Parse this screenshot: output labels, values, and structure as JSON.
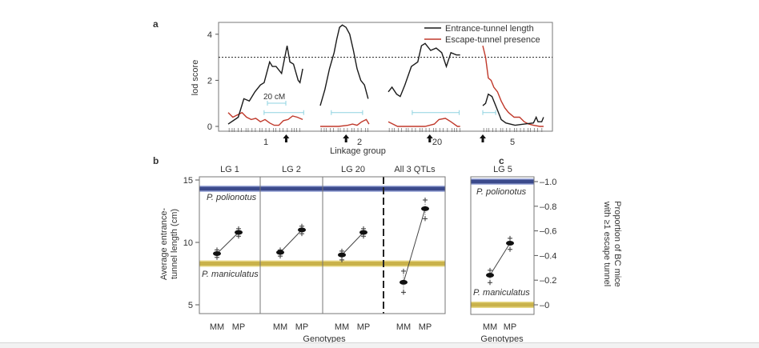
{
  "colors": {
    "black_series": "#1a1a1a",
    "red_series": "#c0392b",
    "interval": "#8fd3e0",
    "polionotus_band": "#3b4a8c",
    "maniculatus_band": "#c9b24a"
  },
  "chart_data": [
    {
      "panel": "a",
      "type": "line",
      "ylabel": "lod score",
      "xlabel": "Linkage group",
      "ylim": [
        -0.2,
        4.6
      ],
      "yticks": [
        0,
        2,
        4
      ],
      "threshold": 3,
      "scale_bar_label": "20 cM",
      "legend": [
        "Entrance-tunnel length",
        "Escape-tunnel presence"
      ],
      "legend_position": "top-right",
      "groups": [
        {
          "label": "1",
          "entrance": [
            [
              0,
              0.1
            ],
            [
              11,
              0.4
            ],
            [
              17,
              1.2
            ],
            [
              23,
              1.1
            ],
            [
              29,
              1.5
            ],
            [
              35,
              1.8
            ],
            [
              39,
              1.9
            ],
            [
              45,
              2.8
            ],
            [
              48,
              2.6
            ],
            [
              52,
              2.6
            ],
            [
              58,
              2.3
            ],
            [
              62,
              3.1
            ],
            [
              64,
              3.5
            ],
            [
              67,
              2.8
            ],
            [
              71,
              2.7
            ],
            [
              76,
              2.0
            ],
            [
              78,
              1.9
            ],
            [
              81,
              2.5
            ]
          ],
          "escape": [
            [
              0,
              0.6
            ],
            [
              5,
              0.4
            ],
            [
              10,
              0.5
            ],
            [
              15,
              0.6
            ],
            [
              20,
              0.4
            ],
            [
              25,
              0.3
            ],
            [
              30,
              0.35
            ],
            [
              35,
              0.2
            ],
            [
              40,
              0.3
            ],
            [
              45,
              0.15
            ],
            [
              50,
              0.05
            ],
            [
              55,
              0.05
            ],
            [
              60,
              0.25
            ],
            [
              65,
              0.3
            ],
            [
              70,
              0.45
            ],
            [
              75,
              0.4
            ],
            [
              81,
              0.3
            ]
          ],
          "interval": [
            39,
            82
          ],
          "qtl_arrow": 63
        },
        {
          "label": "2",
          "entrance": [
            [
              0,
              0.9
            ],
            [
              5,
              1.6
            ],
            [
              10,
              2.5
            ],
            [
              15,
              3.2
            ],
            [
              18,
              3.8
            ],
            [
              21,
              4.3
            ],
            [
              24,
              4.4
            ],
            [
              28,
              4.3
            ],
            [
              32,
              4.0
            ],
            [
              36,
              3.3
            ],
            [
              40,
              2.5
            ],
            [
              44,
              2.0
            ],
            [
              48,
              1.8
            ],
            [
              52,
              1.2
            ]
          ],
          "escape": [
            [
              0,
              0
            ],
            [
              20,
              0
            ],
            [
              30,
              0.05
            ],
            [
              35,
              0.1
            ],
            [
              40,
              0.05
            ],
            [
              45,
              0.2
            ],
            [
              50,
              0.3
            ],
            [
              53,
              0.1
            ]
          ],
          "interval": [
            12,
            46
          ],
          "qtl_arrow": 28
        },
        {
          "label": "20",
          "entrance": [
            [
              0,
              1.5
            ],
            [
              4,
              1.7
            ],
            [
              9,
              1.4
            ],
            [
              13,
              1.3
            ],
            [
              18,
              1.8
            ],
            [
              25,
              2.6
            ],
            [
              32,
              2.8
            ],
            [
              36,
              3.5
            ],
            [
              40,
              3.6
            ],
            [
              46,
              3.3
            ],
            [
              52,
              3.4
            ],
            [
              58,
              3.2
            ],
            [
              63,
              2.6
            ],
            [
              68,
              3.2
            ],
            [
              74,
              3.1
            ],
            [
              78,
              3.1
            ]
          ],
          "escape": [
            [
              0,
              0.2
            ],
            [
              5,
              0.1
            ],
            [
              10,
              0
            ],
            [
              40,
              0
            ],
            [
              50,
              0.1
            ],
            [
              55,
              0.3
            ],
            [
              62,
              0.35
            ],
            [
              68,
              0.2
            ],
            [
              75,
              0
            ],
            [
              78,
              0
            ]
          ],
          "interval": [
            26,
            77
          ],
          "qtl_arrow": 45
        },
        {
          "label": "5",
          "entrance": [
            [
              0,
              0.9
            ],
            [
              3,
              1.0
            ],
            [
              6,
              1.4
            ],
            [
              10,
              1.3
            ],
            [
              15,
              0.8
            ],
            [
              20,
              0.3
            ],
            [
              25,
              0.15
            ],
            [
              35,
              0.05
            ],
            [
              45,
              0.1
            ],
            [
              55,
              0.15
            ],
            [
              58,
              0.4
            ],
            [
              60,
              0.2
            ],
            [
              64,
              0.2
            ],
            [
              66,
              0.4
            ]
          ],
          "escape": [
            [
              0,
              3.5
            ],
            [
              3,
              3.0
            ],
            [
              6,
              2.1
            ],
            [
              9,
              2.0
            ],
            [
              12,
              1.7
            ],
            [
              16,
              1.5
            ],
            [
              20,
              1.1
            ],
            [
              24,
              0.8
            ],
            [
              28,
              0.6
            ],
            [
              34,
              0.4
            ],
            [
              40,
              0.4
            ],
            [
              45,
              0.2
            ],
            [
              50,
              0.1
            ],
            [
              55,
              0.05
            ],
            [
              62,
              0
            ],
            [
              66,
              0
            ]
          ],
          "interval": [
            0,
            14
          ],
          "qtl_arrow": 0
        }
      ]
    },
    {
      "panel": "b",
      "type": "line",
      "ylabel": "Average entrance-tunnel length (cm)",
      "ylabel_lines": [
        "Average entrance-",
        "tunnel length (cm)"
      ],
      "xlabel": "Genotypes",
      "ylim": [
        4.5,
        15.3
      ],
      "yticks": [
        5,
        10,
        15
      ],
      "reference_lines": [
        {
          "label": "P. polionotus",
          "value": 14.3
        },
        {
          "label": "P. maniculatus",
          "value": 8.3
        }
      ],
      "categories": [
        "MM",
        "MP"
      ],
      "facets": [
        {
          "title": "LG 1",
          "means": [
            9.1,
            10.8
          ],
          "low": [
            8.8,
            10.5
          ],
          "high": [
            9.4,
            11.1
          ]
        },
        {
          "title": "LG 2",
          "means": [
            9.2,
            11.0
          ],
          "low": [
            8.9,
            10.7
          ],
          "high": [
            9.4,
            11.3
          ]
        },
        {
          "title": "LG 20",
          "means": [
            9.0,
            10.8
          ],
          "low": [
            8.6,
            10.5
          ],
          "high": [
            9.3,
            11.1
          ]
        },
        {
          "title": "All 3 QTLs",
          "means": [
            6.8,
            12.7
          ],
          "low": [
            6.0,
            11.9
          ],
          "high": [
            7.7,
            13.4
          ]
        }
      ]
    },
    {
      "panel": "c",
      "type": "line",
      "title": "LG 5",
      "ylabel": "Proportion of BC mice with ≥1 escape tunnel",
      "ylabel_lines": [
        "Proportion of BC mice",
        "with ≥1 escape tunnel"
      ],
      "xlabel": "Genotypes",
      "ylim": [
        -0.08,
        1.04
      ],
      "yticks": [
        "0",
        "0.2",
        "0.4",
        "0.6",
        "0.8",
        "1.0"
      ],
      "reference_lines": [
        {
          "label": "P. polionotus",
          "value": 1.0
        },
        {
          "label": "P. maniculatus",
          "value": 0.0
        }
      ],
      "categories": [
        "MM",
        "MP"
      ],
      "means": [
        0.24,
        0.5
      ],
      "low": [
        0.18,
        0.45
      ],
      "high": [
        0.28,
        0.54
      ]
    }
  ],
  "panel_labels": [
    "a",
    "b",
    "c"
  ]
}
